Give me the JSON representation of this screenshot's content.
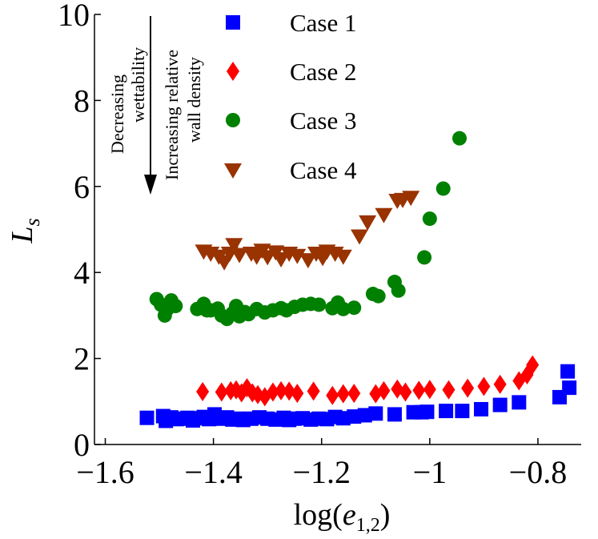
{
  "chart_data": {
    "type": "scatter",
    "title": "",
    "xlabel": {
      "main": "log(",
      "var": "e",
      "sub": "1,2",
      "close": ")"
    },
    "ylabel": {
      "var": "L",
      "sub": "s"
    },
    "xlim": [
      -1.62,
      -0.72
    ],
    "ylim": [
      0,
      10
    ],
    "xticks": [
      -1.6,
      -1.4,
      -1.2,
      -1,
      -0.8
    ],
    "xtick_labels": [
      "−1.6",
      "−1.4",
      "−1.2",
      "−1",
      "−0.8"
    ],
    "yticks": [
      0,
      2,
      4,
      6,
      8,
      10
    ],
    "ytick_labels": [
      "0",
      "2",
      "4",
      "6",
      "8",
      "10"
    ],
    "grid": false,
    "legend_position": "top",
    "annotations": {
      "left_lines": [
        "Decreasing",
        "wettability"
      ],
      "right_lines": [
        "Increasing relative",
        "wall density"
      ]
    },
    "series": [
      {
        "name": "Case 1",
        "marker": "square",
        "color": "#0000ff",
        "points": [
          [
            -1.523,
            0.62
          ],
          [
            -1.493,
            0.66
          ],
          [
            -1.488,
            0.55
          ],
          [
            -1.478,
            0.63
          ],
          [
            -1.468,
            0.59
          ],
          [
            -1.458,
            0.6
          ],
          [
            -1.448,
            0.62
          ],
          [
            -1.438,
            0.56
          ],
          [
            -1.428,
            0.61
          ],
          [
            -1.418,
            0.64
          ],
          [
            -1.408,
            0.59
          ],
          [
            -1.398,
            0.7
          ],
          [
            -1.388,
            0.6
          ],
          [
            -1.375,
            0.63
          ],
          [
            -1.365,
            0.58
          ],
          [
            -1.355,
            0.6
          ],
          [
            -1.345,
            0.57
          ],
          [
            -1.33,
            0.6
          ],
          [
            -1.315,
            0.63
          ],
          [
            -1.3,
            0.6
          ],
          [
            -1.285,
            0.58
          ],
          [
            -1.27,
            0.62
          ],
          [
            -1.26,
            0.57
          ],
          [
            -1.25,
            0.6
          ],
          [
            -1.235,
            0.61
          ],
          [
            -1.22,
            0.58
          ],
          [
            -1.205,
            0.6
          ],
          [
            -1.19,
            0.59
          ],
          [
            -1.175,
            0.64
          ],
          [
            -1.16,
            0.61
          ],
          [
            -1.14,
            0.65
          ],
          [
            -1.12,
            0.68
          ],
          [
            -1.1,
            0.72
          ],
          [
            -1.065,
            0.7
          ],
          [
            -1.03,
            0.75
          ],
          [
            -1.015,
            0.75
          ],
          [
            -1.005,
            0.76
          ],
          [
            -0.97,
            0.78
          ],
          [
            -0.94,
            0.78
          ],
          [
            -0.905,
            0.82
          ],
          [
            -0.87,
            0.92
          ],
          [
            -0.835,
            0.98
          ],
          [
            -0.76,
            1.1
          ],
          [
            -0.745,
            1.7
          ],
          [
            -0.742,
            1.32
          ]
        ]
      },
      {
        "name": "Case 2",
        "marker": "diamond",
        "color": "#ff0000",
        "points": [
          [
            -1.42,
            1.23
          ],
          [
            -1.385,
            1.22
          ],
          [
            -1.368,
            1.25
          ],
          [
            -1.358,
            1.27
          ],
          [
            -1.348,
            1.2
          ],
          [
            -1.338,
            1.32
          ],
          [
            -1.328,
            1.2
          ],
          [
            -1.318,
            1.16
          ],
          [
            -1.305,
            1.11
          ],
          [
            -1.29,
            1.22
          ],
          [
            -1.275,
            1.25
          ],
          [
            -1.26,
            1.24
          ],
          [
            -1.245,
            1.19
          ],
          [
            -1.215,
            1.24
          ],
          [
            -1.18,
            1.14
          ],
          [
            -1.16,
            1.18
          ],
          [
            -1.14,
            1.19
          ],
          [
            -1.1,
            1.18
          ],
          [
            -1.085,
            1.25
          ],
          [
            -1.06,
            1.29
          ],
          [
            -1.045,
            1.22
          ],
          [
            -1.02,
            1.26
          ],
          [
            -1.0,
            1.28
          ],
          [
            -0.965,
            1.27
          ],
          [
            -0.93,
            1.31
          ],
          [
            -0.9,
            1.35
          ],
          [
            -0.87,
            1.4
          ],
          [
            -0.835,
            1.48
          ],
          [
            -0.82,
            1.62
          ],
          [
            -0.81,
            1.85
          ]
        ]
      },
      {
        "name": "Case 3",
        "marker": "circle",
        "color": "#008000",
        "points": [
          [
            -1.505,
            3.38
          ],
          [
            -1.497,
            3.25
          ],
          [
            -1.49,
            3.0
          ],
          [
            -1.485,
            3.15
          ],
          [
            -1.478,
            3.35
          ],
          [
            -1.47,
            3.22
          ],
          [
            -1.43,
            3.15
          ],
          [
            -1.418,
            3.27
          ],
          [
            -1.412,
            3.12
          ],
          [
            -1.405,
            3.12
          ],
          [
            -1.392,
            3.16
          ],
          [
            -1.385,
            3.0
          ],
          [
            -1.375,
            2.92
          ],
          [
            -1.365,
            3.05
          ],
          [
            -1.358,
            3.22
          ],
          [
            -1.352,
            2.98
          ],
          [
            -1.342,
            3.08
          ],
          [
            -1.335,
            3.03
          ],
          [
            -1.32,
            3.15
          ],
          [
            -1.305,
            3.07
          ],
          [
            -1.29,
            3.12
          ],
          [
            -1.275,
            3.17
          ],
          [
            -1.265,
            3.12
          ],
          [
            -1.25,
            3.2
          ],
          [
            -1.235,
            3.25
          ],
          [
            -1.22,
            3.27
          ],
          [
            -1.205,
            3.25
          ],
          [
            -1.18,
            3.17
          ],
          [
            -1.17,
            3.3
          ],
          [
            -1.16,
            3.15
          ],
          [
            -1.14,
            3.18
          ],
          [
            -1.105,
            3.5
          ],
          [
            -1.095,
            3.45
          ],
          [
            -1.065,
            3.78
          ],
          [
            -1.058,
            3.58
          ],
          [
            -1.01,
            4.35
          ],
          [
            -1.0,
            5.25
          ],
          [
            -0.975,
            5.95
          ],
          [
            -0.945,
            7.12
          ]
        ]
      },
      {
        "name": "Case 4",
        "marker": "triangle-down",
        "color": "#993300",
        "points": [
          [
            -1.418,
            4.5
          ],
          [
            -1.405,
            4.45
          ],
          [
            -1.39,
            4.38
          ],
          [
            -1.38,
            4.25
          ],
          [
            -1.37,
            4.45
          ],
          [
            -1.362,
            4.65
          ],
          [
            -1.352,
            4.42
          ],
          [
            -1.33,
            4.45
          ],
          [
            -1.32,
            4.38
          ],
          [
            -1.31,
            4.52
          ],
          [
            -1.3,
            4.37
          ],
          [
            -1.285,
            4.48
          ],
          [
            -1.275,
            4.32
          ],
          [
            -1.26,
            4.45
          ],
          [
            -1.245,
            4.4
          ],
          [
            -1.225,
            4.3
          ],
          [
            -1.21,
            4.45
          ],
          [
            -1.198,
            4.35
          ],
          [
            -1.19,
            4.5
          ],
          [
            -1.175,
            4.45
          ],
          [
            -1.16,
            4.38
          ],
          [
            -1.13,
            4.85
          ],
          [
            -1.115,
            5.18
          ],
          [
            -1.085,
            5.35
          ],
          [
            -1.06,
            5.68
          ],
          [
            -1.05,
            5.7
          ],
          [
            -1.035,
            5.75
          ]
        ]
      }
    ]
  }
}
